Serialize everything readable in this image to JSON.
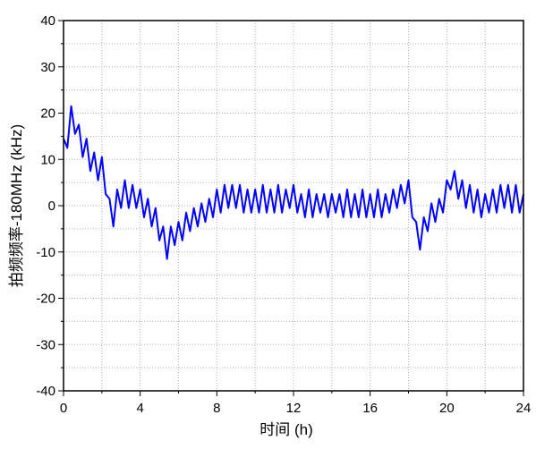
{
  "chart_data": {
    "type": "line",
    "x_label": "时间 (h)",
    "y_label": "拍频频率-180MHz (kHz)",
    "x": [
      0,
      0.2,
      0.4,
      0.6,
      0.8,
      1,
      1.2,
      1.4,
      1.6,
      1.8,
      2,
      2.2,
      2.4,
      2.6,
      2.8,
      3,
      3.2,
      3.4,
      3.6,
      3.8,
      4,
      4.2,
      4.4,
      4.6,
      4.8,
      5,
      5.2,
      5.4,
      5.6,
      5.8,
      6,
      6.2,
      6.4,
      6.6,
      6.8,
      7,
      7.2,
      7.4,
      7.6,
      7.8,
      8,
      8.2,
      8.4,
      8.6,
      8.8,
      9,
      9.2,
      9.4,
      9.6,
      9.8,
      10,
      10.2,
      10.4,
      10.6,
      10.8,
      11,
      11.2,
      11.4,
      11.6,
      11.8,
      12,
      12.2,
      12.4,
      12.6,
      12.8,
      13,
      13.2,
      13.4,
      13.6,
      13.8,
      14,
      14.2,
      14.4,
      14.6,
      14.8,
      15,
      15.2,
      15.4,
      15.6,
      15.8,
      16,
      16.2,
      16.4,
      16.6,
      16.8,
      17,
      17.2,
      17.4,
      17.6,
      17.8,
      18,
      18.2,
      18.4,
      18.6,
      18.8,
      19,
      19.2,
      19.4,
      19.6,
      19.8,
      20,
      20.2,
      20.4,
      20.6,
      20.8,
      21,
      21.2,
      21.4,
      21.6,
      21.8,
      22,
      22.2,
      22.4,
      22.6,
      22.8,
      23,
      23.2,
      23.4,
      23.6,
      23.8,
      24
    ],
    "series": [
      {
        "color": "#0000ff",
        "values": [
          14.5,
          12.5,
          21.5,
          15.5,
          17.5,
          10.5,
          14.5,
          7.5,
          11.5,
          5.5,
          10.5,
          2.5,
          1.5,
          -4.5,
          3.5,
          -0.5,
          5.5,
          -0.5,
          4.5,
          -0.5,
          3.5,
          -2.5,
          1.5,
          -4.5,
          -0.5,
          -7.5,
          -4.5,
          -11.5,
          -4.5,
          -8.5,
          -3.5,
          -7.5,
          -1.5,
          -5.5,
          -0.5,
          -4.5,
          0.5,
          -3.5,
          1.5,
          -2.5,
          3.5,
          -1.5,
          4.5,
          -0.5,
          4.5,
          -0.5,
          4.5,
          -1.5,
          3.5,
          -1.5,
          3.5,
          -1.5,
          4.5,
          -1.5,
          3.5,
          -1.5,
          4.5,
          -1.5,
          3.5,
          -0.5,
          4.5,
          -1.5,
          2.5,
          -2.5,
          3.5,
          -2.5,
          2.5,
          -1.5,
          2.5,
          -2.5,
          2.5,
          -1.5,
          2.5,
          -2.5,
          3.5,
          -2.5,
          2.5,
          -2.5,
          3.5,
          -2.5,
          2.5,
          -2.5,
          3.5,
          -2.5,
          2.5,
          -1.5,
          3.5,
          -0.5,
          4.5,
          0.5,
          5.5,
          -2.5,
          -3.5,
          -9.5,
          -2.5,
          -5.5,
          0.5,
          -3.5,
          1.5,
          -1.5,
          5.5,
          3.5,
          7.5,
          1.5,
          5.5,
          -0.5,
          4.5,
          -1.5,
          3.5,
          -2.5,
          2.5,
          -1.5,
          3.5,
          -1.5,
          4.5,
          -0.5,
          4.5,
          -1.5,
          4.5,
          -1.5,
          2.5
        ]
      }
    ],
    "xlim": [
      0,
      24
    ],
    "xticks": [
      0,
      4,
      8,
      12,
      16,
      20,
      24
    ],
    "xminorticks": [
      2,
      6,
      10,
      14,
      18,
      22
    ],
    "ylim": [
      -40,
      40
    ],
    "yticks": [
      -40,
      -30,
      -20,
      -10,
      0,
      10,
      20,
      30,
      40
    ],
    "yminorticks": [
      -35,
      -25,
      -15,
      -5,
      5,
      15,
      25,
      35
    ],
    "grid": true
  }
}
